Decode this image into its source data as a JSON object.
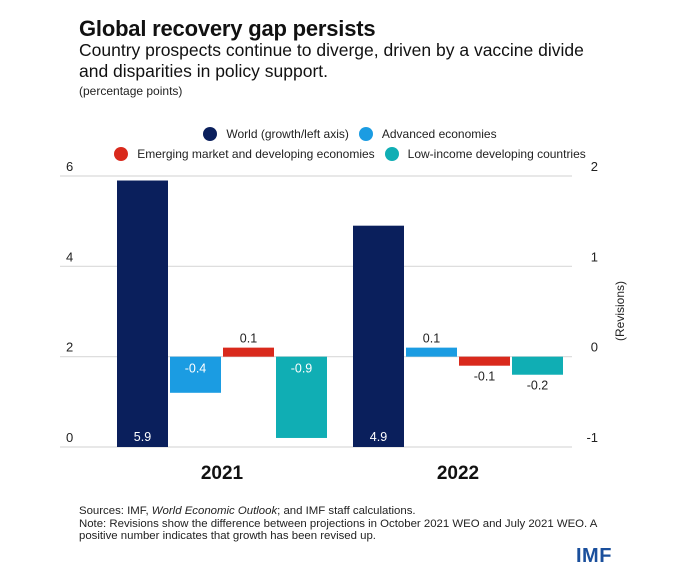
{
  "header": {
    "title": "Global recovery gap persists",
    "subtitle": "Country prospects continue to diverge, driven by a vaccine divide and disparities in policy support.",
    "units": "(percentage points)"
  },
  "footer": {
    "sources_prefix": "Sources: IMF, ",
    "sources_italic": "World Economic Outlook",
    "sources_suffix": "; and IMF staff calculations.",
    "note": "Note: Revisions show the difference between projections in October 2021 WEO and July 2021 WEO. A positive number indicates that growth has been revised up.",
    "logo": "IMF"
  },
  "chart_data": {
    "type": "bar",
    "title": "Global recovery gap persists",
    "subtitle": "Country prospects continue to diverge, driven by a vaccine divide and disparities in policy support.",
    "units": "(percentage points)",
    "categories": [
      "2021",
      "2022"
    ],
    "series": [
      {
        "name": "World (growth/left axis)",
        "axis": "left",
        "color": "#0a1f5c",
        "values": [
          5.9,
          4.9
        ],
        "labels": [
          "5.9",
          "4.9"
        ]
      },
      {
        "name": "Advanced economies",
        "axis": "right",
        "color": "#1b9ce2",
        "values": [
          -0.4,
          0.1
        ],
        "labels": [
          "-0.4",
          "0.1"
        ]
      },
      {
        "name": "Emerging market and developing economies",
        "axis": "right",
        "color": "#d9291c",
        "values": [
          0.1,
          -0.1
        ],
        "labels": [
          "0.1",
          "-0.1"
        ]
      },
      {
        "name": "Low-income developing countries",
        "axis": "right",
        "color": "#10aeb4",
        "values": [
          -0.9,
          -0.2
        ],
        "labels": [
          "-0.9",
          "-0.2"
        ]
      }
    ],
    "left_axis": {
      "label": "",
      "ylim": [
        0,
        6
      ],
      "ticks": [
        "0",
        "2",
        "4",
        "6"
      ],
      "tick_values": [
        0,
        2,
        4,
        6
      ]
    },
    "right_axis": {
      "label": "(Revisions)",
      "ylim": [
        -1,
        2
      ],
      "ticks": [
        "-1",
        "0",
        "1",
        "2"
      ],
      "tick_values": [
        -1,
        0,
        1,
        2
      ]
    },
    "grid": true,
    "legend": "top-center",
    "legend_rows": [
      [
        0,
        1
      ],
      [
        2,
        3
      ]
    ]
  }
}
